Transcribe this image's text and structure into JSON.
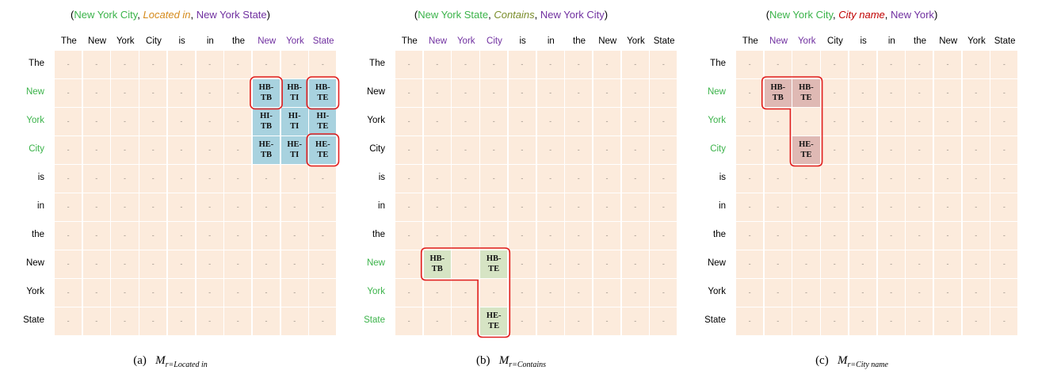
{
  "colors": {
    "subject": "#3bb34a",
    "object": "#7030a0",
    "cell_bg": "#fcebdc",
    "outline": "#e02020",
    "panels": [
      "#a8d2df",
      "#d6e4c4",
      "#dfb9b4"
    ],
    "relations": [
      "#d58a1b",
      "#7a8d2a",
      "#c00000"
    ]
  },
  "panels": [
    {
      "title": {
        "open": "(",
        "subject": "New York City",
        "sep1": ", ",
        "relation": "Located in",
        "sep2": ", ",
        "object": "New York State",
        "close": ")"
      },
      "col_tokens": [
        "The",
        "New",
        "York",
        "City",
        "is",
        "in",
        "the",
        "New",
        "York",
        "State"
      ],
      "row_tokens": [
        "The",
        "New",
        "York",
        "City",
        "is",
        "in",
        "the",
        "New",
        "York",
        "State"
      ],
      "col_highlight": [
        7,
        8,
        9
      ],
      "row_highlight": [
        1,
        2,
        3
      ],
      "cells": [
        {
          "r": 1,
          "c": 7,
          "label": "HB-TB"
        },
        {
          "r": 1,
          "c": 8,
          "label": "HB-TI"
        },
        {
          "r": 1,
          "c": 9,
          "label": "HB-TE"
        },
        {
          "r": 2,
          "c": 7,
          "label": "HI-TB"
        },
        {
          "r": 2,
          "c": 8,
          "label": "HI-TI"
        },
        {
          "r": 2,
          "c": 9,
          "label": "HI-TE"
        },
        {
          "r": 3,
          "c": 7,
          "label": "HE-TB"
        },
        {
          "r": 3,
          "c": 8,
          "label": "HE-TI"
        },
        {
          "r": 3,
          "c": 9,
          "label": "HE-TE"
        }
      ],
      "outlines": [
        {
          "cells": [
            [
              1,
              7
            ]
          ]
        },
        {
          "cells": [
            [
              1,
              9
            ]
          ]
        },
        {
          "cells": [
            [
              3,
              9
            ]
          ]
        }
      ],
      "caption": {
        "label": "(a)",
        "m": "M",
        "sub": "r=Located in"
      }
    },
    {
      "title": {
        "open": "(",
        "subject": "New York State",
        "sep1": ", ",
        "relation": "Contains",
        "sep2": ", ",
        "object": "New York City",
        "close": ")"
      },
      "col_tokens": [
        "The",
        "New",
        "York",
        "City",
        "is",
        "in",
        "the",
        "New",
        "York",
        "State"
      ],
      "row_tokens": [
        "The",
        "New",
        "York",
        "City",
        "is",
        "in",
        "the",
        "New",
        "York",
        "State"
      ],
      "col_highlight": [
        1,
        2,
        3
      ],
      "row_highlight": [
        7,
        8,
        9
      ],
      "cells": [
        {
          "r": 7,
          "c": 1,
          "label": "HB-TB"
        },
        {
          "r": 7,
          "c": 3,
          "label": "HB-TE"
        },
        {
          "r": 9,
          "c": 3,
          "label": "HE-TE"
        }
      ],
      "outlines": [
        {
          "shape": "L",
          "row": 7,
          "c0": 1,
          "c1": 3,
          "r1": 9
        }
      ],
      "caption": {
        "label": "(b)",
        "m": "M",
        "sub": "r=Contains"
      }
    },
    {
      "title": {
        "open": "(",
        "subject": "New York City",
        "sep1": ", ",
        "relation": "City name",
        "sep2": ", ",
        "object": "New York",
        "close": ")"
      },
      "col_tokens": [
        "The",
        "New",
        "York",
        "City",
        "is",
        "in",
        "the",
        "New",
        "York",
        "State"
      ],
      "row_tokens": [
        "The",
        "New",
        "York",
        "City",
        "is",
        "in",
        "the",
        "New",
        "York",
        "State"
      ],
      "col_highlight": [
        1,
        2
      ],
      "row_highlight": [
        1,
        2,
        3
      ],
      "cells": [
        {
          "r": 1,
          "c": 1,
          "label": "HB-TB"
        },
        {
          "r": 1,
          "c": 2,
          "label": "HB-TE"
        },
        {
          "r": 3,
          "c": 2,
          "label": "HE-TE"
        }
      ],
      "outlines": [
        {
          "shape": "L",
          "row": 1,
          "c0": 1,
          "c1": 2,
          "r1": 3
        }
      ],
      "caption": {
        "label": "(c)",
        "m": "M",
        "sub": "r=City name"
      }
    }
  ]
}
